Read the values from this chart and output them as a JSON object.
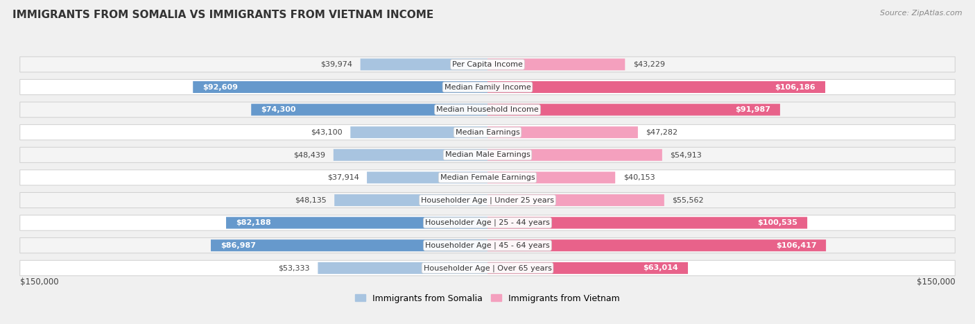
{
  "title": "IMMIGRANTS FROM SOMALIA VS IMMIGRANTS FROM VIETNAM INCOME",
  "source": "Source: ZipAtlas.com",
  "categories": [
    "Per Capita Income",
    "Median Family Income",
    "Median Household Income",
    "Median Earnings",
    "Median Male Earnings",
    "Median Female Earnings",
    "Householder Age | Under 25 years",
    "Householder Age | 25 - 44 years",
    "Householder Age | 45 - 64 years",
    "Householder Age | Over 65 years"
  ],
  "somalia_values": [
    39974,
    92609,
    74300,
    43100,
    48439,
    37914,
    48135,
    82188,
    86987,
    53333
  ],
  "vietnam_values": [
    43229,
    106186,
    91987,
    47282,
    54913,
    40153,
    55562,
    100535,
    106417,
    63014
  ],
  "somalia_labels": [
    "$39,974",
    "$92,609",
    "$74,300",
    "$43,100",
    "$48,439",
    "$37,914",
    "$48,135",
    "$82,188",
    "$86,987",
    "$53,333"
  ],
  "vietnam_labels": [
    "$43,229",
    "$106,186",
    "$91,987",
    "$47,282",
    "$54,913",
    "$40,153",
    "$55,562",
    "$100,535",
    "$106,417",
    "$63,014"
  ],
  "somalia_color_light": "#a8c4e0",
  "somalia_color_dark": "#6699cc",
  "vietnam_color_light": "#f4a0be",
  "vietnam_color_dark": "#e8628a",
  "max_value": 150000,
  "x_label_left": "$150,000",
  "x_label_right": "$150,000",
  "legend_somalia": "Immigrants from Somalia",
  "legend_vietnam": "Immigrants from Vietnam",
  "background_color": "#f0f0f0",
  "row_bg_even": "#f4f4f4",
  "row_bg_odd": "#ffffff",
  "row_border": "#d0d0d0",
  "large_threshold_somalia": 60000,
  "large_threshold_vietnam": 60000,
  "title_fontsize": 11,
  "label_fontsize": 8,
  "cat_fontsize": 8
}
